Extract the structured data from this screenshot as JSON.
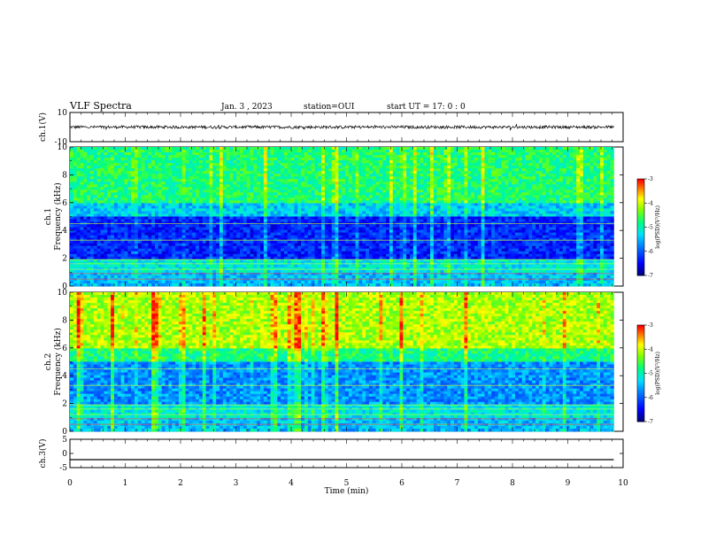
{
  "header": {
    "title": "VLF Spectra",
    "date": "Jan. 3 , 2023",
    "station": "station=OUI",
    "start_ut": "start UT = 17: 0 : 0"
  },
  "chart_data": [
    {
      "type": "line",
      "panel": "waveform-ch1",
      "ylabel": "ch.1(V)",
      "ylim": [
        -10,
        10
      ],
      "yticks": [
        "10",
        "-10"
      ],
      "x_range_min": [
        0,
        9.83
      ],
      "baseline": 0.0,
      "amplitude": 1.0
    },
    {
      "type": "heatmap",
      "panel": "spectrogram-ch1",
      "ylabel": "ch.1",
      "ylabel2": "Frequency (kHz)",
      "ylim": [
        0,
        10
      ],
      "yticks": [
        "0",
        "2",
        "4",
        "6",
        "8",
        "10"
      ],
      "colorbar": {
        "label": "log(PSD)(V²/Hz)",
        "range": [
          -7,
          -3
        ],
        "ticks": [
          "-3",
          "-4",
          "-5",
          "-6",
          "-7"
        ]
      }
    },
    {
      "type": "heatmap",
      "panel": "spectrogram-ch2",
      "ylabel": "ch.2",
      "ylabel2": "Frequency (kHz)",
      "ylim": [
        0,
        10
      ],
      "yticks": [
        "0",
        "2",
        "4",
        "6",
        "8",
        "10"
      ],
      "colorbar": {
        "label": "log(PSD)(V²/Hz)",
        "range": [
          -7,
          -3
        ],
        "ticks": [
          "-3",
          "-4",
          "-5",
          "-6",
          "-7"
        ]
      }
    },
    {
      "type": "line",
      "panel": "waveform-ch3",
      "ylabel": "ch.3(V)",
      "ylim": [
        -5,
        5
      ],
      "yticks": [
        "5",
        "0",
        "-5"
      ],
      "x_range_min": [
        0,
        9.83
      ],
      "baseline": -2.2,
      "amplitude": 0.0
    }
  ],
  "xaxis": {
    "label": "Time (min)",
    "range": [
      0,
      10
    ],
    "ticks": [
      "0",
      "1",
      "2",
      "3",
      "4",
      "5",
      "6",
      "7",
      "8",
      "9",
      "10"
    ]
  },
  "colors": {
    "trace": "#000000",
    "frame": "#000000",
    "colormap": [
      "#000080",
      "#0000ff",
      "#0080ff",
      "#00e0ff",
      "#00ff80",
      "#80ff00",
      "#ffff00",
      "#ff8000",
      "#ff0000",
      "#ffffff"
    ]
  }
}
